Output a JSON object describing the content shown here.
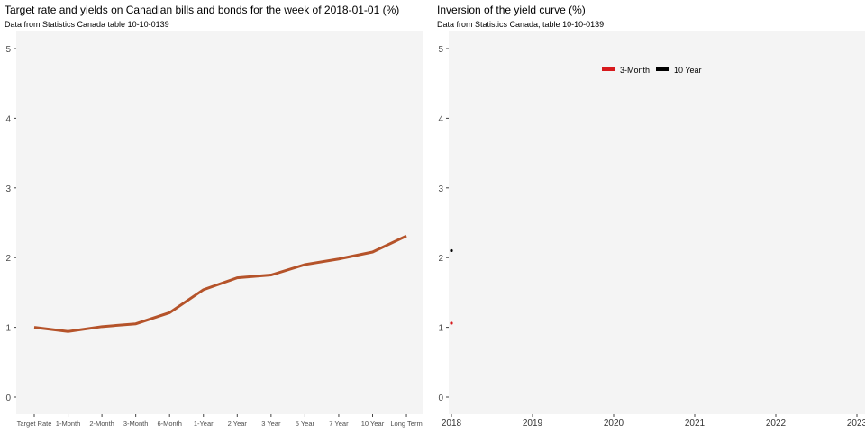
{
  "chart_data": [
    {
      "type": "line",
      "title": "Target rate and yields on Canadian bills and bonds for the week of 2018-01-01 (%)",
      "subtitle": "Data from Statistics Canada table 10-10-0139",
      "categories": [
        "Target Rate",
        "1-Month",
        "2-Month",
        "3-Month",
        "6-Month",
        "1-Year",
        "2 Year",
        "3 Year",
        "5 Year",
        "7 Year",
        "10 Year",
        "Long Term"
      ],
      "values": [
        1.0,
        0.94,
        1.01,
        1.05,
        1.21,
        1.54,
        1.71,
        1.75,
        1.9,
        1.98,
        2.08,
        2.31
      ],
      "ylim": [
        0,
        5
      ],
      "yticks": [
        "0",
        "1",
        "2",
        "3",
        "4",
        "5"
      ],
      "color": "#b5532a"
    },
    {
      "type": "line",
      "title": "Inversion of the yield curve (%)",
      "subtitle": "Data from Statistics Canada, table 10-10-0139",
      "xticks": [
        "2018",
        "2019",
        "2020",
        "2021",
        "2022",
        "2023"
      ],
      "xlim": [
        2018,
        2023.05
      ],
      "ylim": [
        0,
        5
      ],
      "yticks": [
        "0",
        "1",
        "2",
        "3",
        "4",
        "5"
      ],
      "legend": "top-right",
      "series": [
        {
          "name": "3-Month",
          "color": "#d7191c",
          "x": [
            2018.0
          ],
          "values": [
            1.06
          ]
        },
        {
          "name": "10 Year",
          "color": "#000000",
          "x": [
            2018.0
          ],
          "values": [
            2.1
          ]
        }
      ]
    }
  ]
}
